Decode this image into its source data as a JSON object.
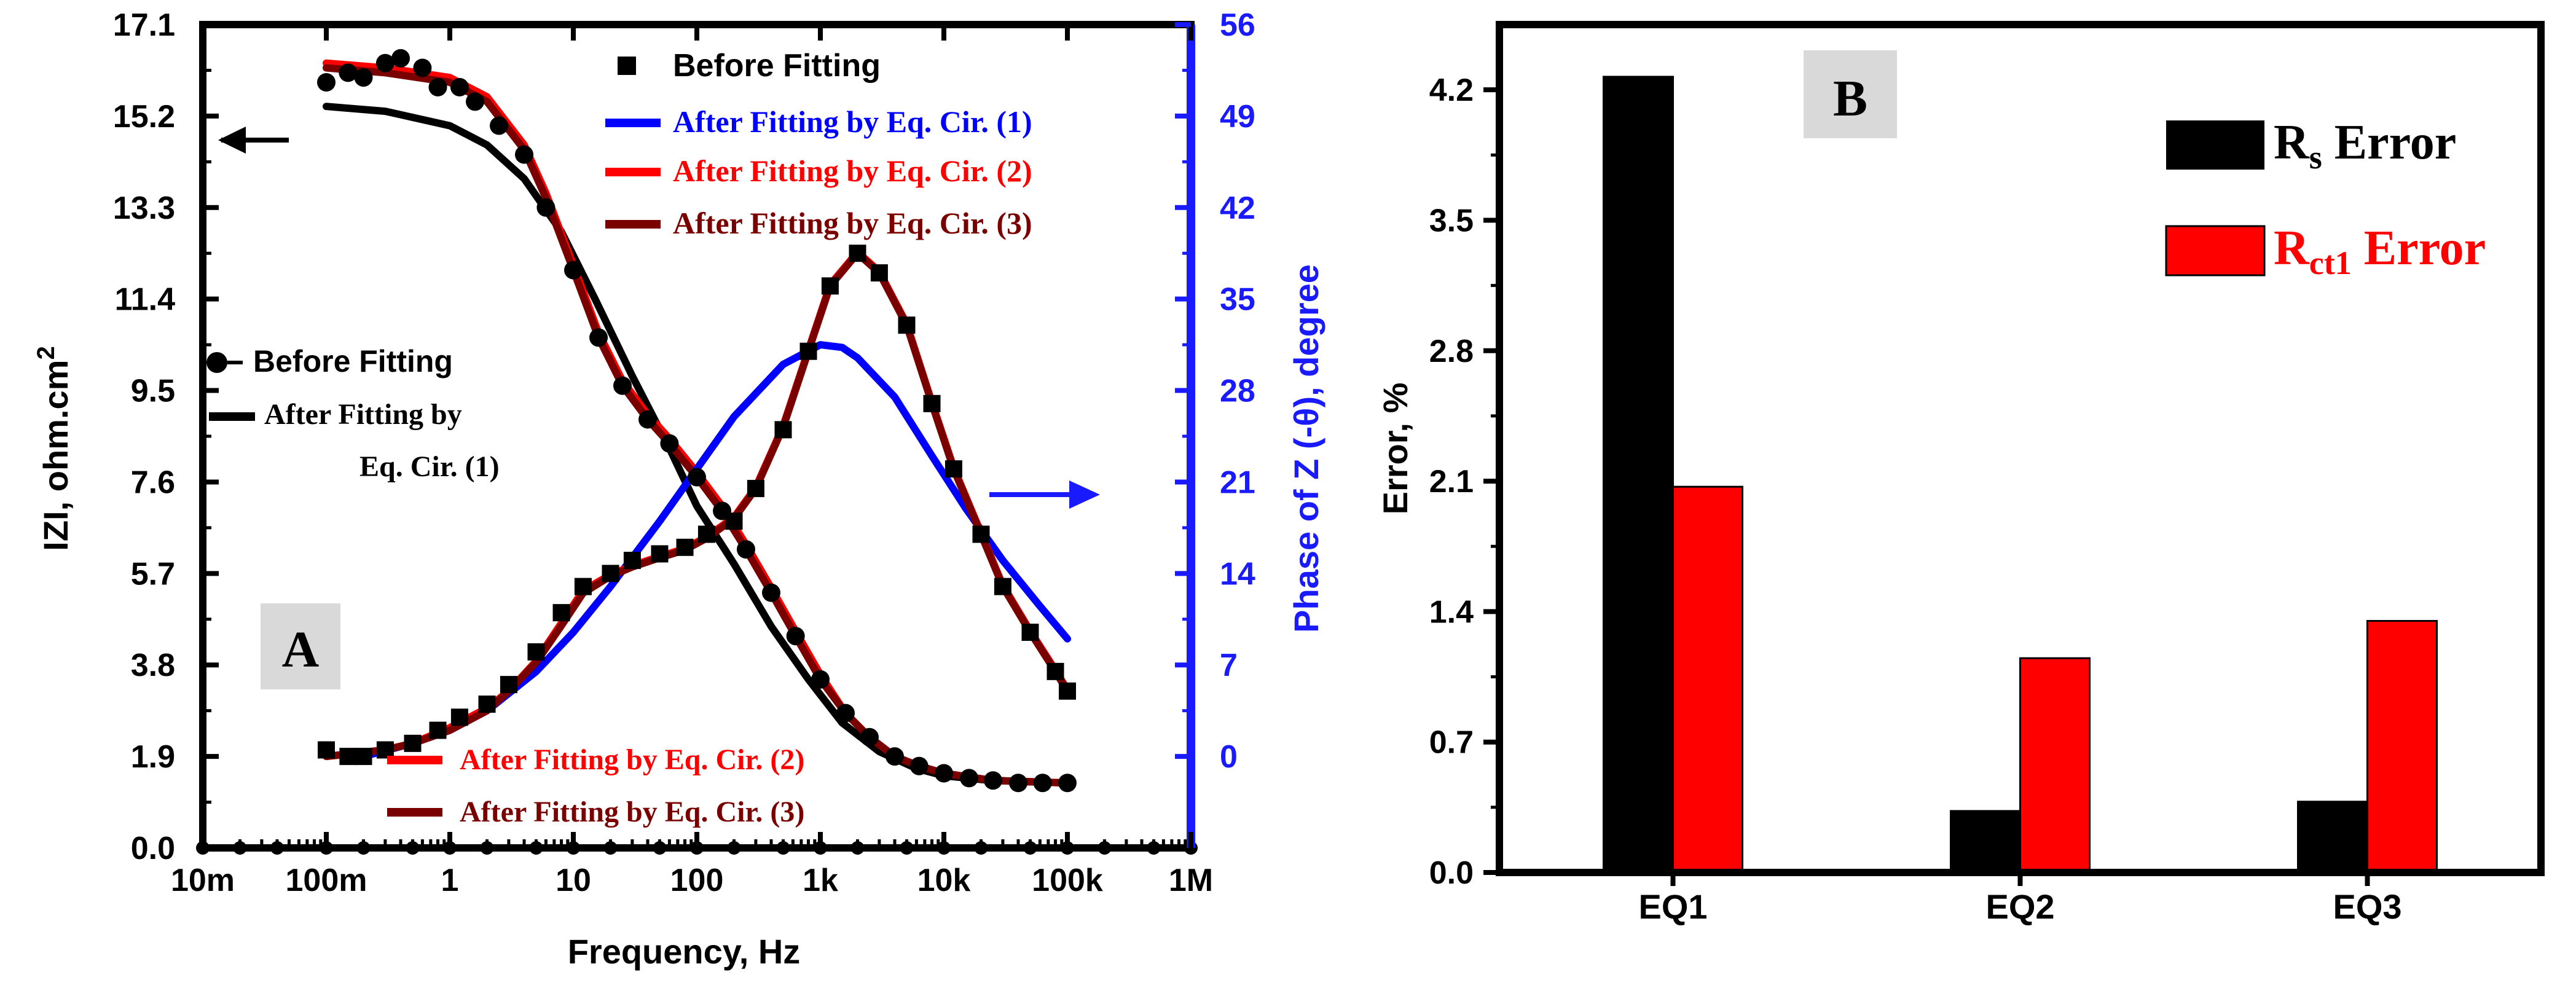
{
  "chart_data": [
    {
      "panel": "A",
      "type": "line",
      "title": "",
      "panel_label": "A",
      "xlabel": "Frequency, Hz",
      "xscale": "log",
      "xlim": [
        0.01,
        1000000
      ],
      "x_ticks": [
        0.01,
        0.1,
        1,
        10,
        100,
        1000,
        10000,
        100000,
        1000000
      ],
      "x_tick_labels": [
        "10m",
        "100m",
        "1",
        "10",
        "100",
        "1k",
        "10k",
        "100k",
        "1M"
      ],
      "ylabel_left": "IZI, ohm.cm",
      "ylabel_left_sup": "2",
      "ylim_left": [
        0,
        17.1
      ],
      "y_left_ticks": [
        0.0,
        1.9,
        3.8,
        5.7,
        7.6,
        9.5,
        11.4,
        13.3,
        15.2,
        17.1
      ],
      "y_left_tick_labels": [
        "0.0",
        "1.9",
        "3.8",
        "5.7",
        "7.6",
        "9.5",
        "11.4",
        "13.3",
        "15.2",
        "17.1"
      ],
      "ylabel_right": "Phase of Z (-θ), degree",
      "ylim_right": [
        -7,
        56
      ],
      "y_right_ticks": [
        0,
        7,
        14,
        21,
        28,
        35,
        42,
        49,
        56
      ],
      "y_right_tick_labels": [
        "0",
        "7",
        "14",
        "21",
        "28",
        "35",
        "42",
        "49",
        "56"
      ],
      "legend_top": [
        "Before Fitting",
        "After Fitting by Eq. Cir. (1)",
        "After Fitting by Eq. Cir. (2)",
        "After Fitting by Eq. Cir. (3)"
      ],
      "legend_left": [
        "Before Fitting",
        "After Fitting by",
        "Eq. Cir. (1)"
      ],
      "legend_bottom": [
        "After Fitting by Eq. Cir. (2)",
        "After Fitting by Eq. Cir. (3)"
      ],
      "marker_baseline_points": [
        0.01,
        0.02,
        0.04,
        0.1,
        0.2,
        0.5,
        1,
        2,
        5,
        10,
        20,
        50,
        100,
        200,
        500,
        1000,
        2000,
        5000,
        10000,
        20000,
        50000,
        100000,
        200000,
        500000,
        1000000
      ],
      "series": [
        {
          "name": "Before Fitting (|Z|)",
          "axis": "left",
          "style": "markers",
          "marker": "circle",
          "color": "#000000",
          "x": [
            0.1,
            0.15,
            0.2,
            0.3,
            0.4,
            0.6,
            0.8,
            1.2,
            1.6,
            2.5,
            4,
            6,
            10,
            16,
            25,
            40,
            60,
            100,
            160,
            250,
            400,
            630,
            1000,
            1600,
            2500,
            4000,
            6300,
            10000,
            16000,
            25000,
            40000,
            63000,
            100000
          ],
          "y": [
            15.9,
            16.1,
            16.0,
            16.3,
            16.4,
            16.2,
            15.8,
            15.8,
            15.5,
            15.0,
            14.4,
            13.3,
            12.0,
            10.6,
            9.6,
            8.9,
            8.4,
            7.7,
            7.0,
            6.2,
            5.3,
            4.4,
            3.5,
            2.8,
            2.3,
            1.9,
            1.7,
            1.55,
            1.45,
            1.4,
            1.35,
            1.35,
            1.35
          ]
        },
        {
          "name": "After Fitting by Eq. Cir. (1) (|Z|)",
          "axis": "left",
          "style": "line",
          "color": "#000000",
          "x": [
            0.1,
            0.3,
            1,
            2,
            4,
            8,
            15,
            30,
            60,
            100,
            200,
            400,
            800,
            1500,
            3000,
            6000,
            10000,
            20000,
            40000,
            100000
          ],
          "y": [
            15.4,
            15.3,
            15.0,
            14.6,
            13.9,
            12.8,
            11.4,
            9.8,
            8.3,
            7.1,
            5.9,
            4.6,
            3.5,
            2.6,
            2.0,
            1.65,
            1.5,
            1.42,
            1.38,
            1.35
          ]
        },
        {
          "name": "After Fitting by Eq. Cir. (2) (|Z|)",
          "axis": "left",
          "style": "line",
          "color": "#ff0000",
          "x": [
            0.1,
            0.3,
            1,
            2,
            4,
            6,
            10,
            16,
            25,
            40,
            60,
            100,
            160,
            250,
            400,
            630,
            1000,
            1600,
            2500,
            4000,
            6300,
            10000,
            25000,
            100000
          ],
          "y": [
            16.3,
            16.2,
            16.0,
            15.6,
            14.6,
            13.6,
            12.1,
            10.7,
            9.7,
            9.0,
            8.5,
            7.8,
            7.1,
            6.3,
            5.4,
            4.5,
            3.6,
            2.8,
            2.3,
            1.9,
            1.7,
            1.55,
            1.4,
            1.35
          ]
        },
        {
          "name": "After Fitting by Eq. Cir. (3) (|Z|)",
          "axis": "left",
          "style": "line",
          "color": "#7a0000",
          "x": [
            0.1,
            0.3,
            1,
            2,
            4,
            6,
            10,
            16,
            25,
            40,
            60,
            100,
            160,
            250,
            400,
            630,
            1000,
            1600,
            2500,
            4000,
            6300,
            10000,
            25000,
            100000
          ],
          "y": [
            16.2,
            16.1,
            15.9,
            15.5,
            14.5,
            13.5,
            12.0,
            10.6,
            9.6,
            8.9,
            8.4,
            7.7,
            7.0,
            6.2,
            5.3,
            4.4,
            3.5,
            2.8,
            2.3,
            1.9,
            1.7,
            1.55,
            1.4,
            1.35
          ]
        },
        {
          "name": "Before Fitting (Phase)",
          "axis": "right",
          "style": "markers",
          "marker": "square",
          "color": "#000000",
          "x": [
            0.1,
            0.15,
            0.2,
            0.3,
            0.5,
            0.8,
            1.2,
            2,
            3,
            5,
            8,
            12,
            20,
            30,
            50,
            80,
            120,
            200,
            300,
            500,
            800,
            1200,
            2000,
            3000,
            5000,
            8000,
            12000,
            20000,
            30000,
            50000,
            80000,
            100000
          ],
          "y": [
            0.5,
            0,
            0,
            0.5,
            1,
            2,
            3,
            4,
            5.5,
            8,
            11,
            13,
            14,
            15,
            15.5,
            16,
            17,
            18,
            20.5,
            25,
            31,
            36,
            38.5,
            37,
            33,
            27,
            22,
            17,
            13,
            9.5,
            6.5,
            5
          ]
        },
        {
          "name": "After Fitting by Eq. Cir. (1) (Phase)",
          "axis": "right",
          "style": "line",
          "color": "#0000ff",
          "x": [
            0.2,
            0.5,
            1,
            2,
            5,
            10,
            20,
            50,
            100,
            200,
            500,
            1000,
            1500,
            2000,
            4000,
            8000,
            15000,
            30000,
            60000,
            100000
          ],
          "y": [
            0,
            1,
            2,
            3.5,
            6.5,
            9.5,
            13,
            18,
            22,
            26,
            30,
            31.5,
            31.3,
            30.5,
            27.5,
            23,
            19,
            15,
            11.5,
            9
          ]
        },
        {
          "name": "After Fitting by Eq. Cir. (2) (Phase)",
          "axis": "right",
          "style": "line",
          "color": "#ff0000",
          "x": [
            0.1,
            0.3,
            0.5,
            1,
            2,
            3,
            5,
            8,
            12,
            20,
            30,
            50,
            80,
            120,
            200,
            300,
            500,
            800,
            1200,
            2000,
            3000,
            5000,
            8000,
            12000,
            20000,
            30000,
            50000,
            80000,
            100000
          ],
          "y": [
            0,
            0.5,
            1,
            2.2,
            3.7,
            5,
            7.3,
            10.2,
            12.7,
            13.9,
            14.6,
            15.3,
            15.9,
            16.8,
            18.3,
            20.6,
            25.3,
            31.1,
            36.1,
            38.6,
            37.1,
            33.1,
            27.1,
            22.1,
            17.1,
            13.1,
            9.6,
            6.6,
            5.1
          ]
        },
        {
          "name": "After Fitting by Eq. Cir. (3) (Phase)",
          "axis": "right",
          "style": "line",
          "color": "#7a0000",
          "x": [
            0.1,
            0.3,
            0.5,
            1,
            2,
            3,
            5,
            8,
            12,
            20,
            30,
            50,
            80,
            120,
            200,
            300,
            500,
            800,
            1200,
            2000,
            3000,
            5000,
            8000,
            12000,
            20000,
            30000,
            50000,
            80000,
            100000
          ],
          "y": [
            0,
            0.5,
            1,
            2,
            3.5,
            5,
            7.2,
            10,
            12.5,
            13.8,
            14.5,
            15.2,
            15.8,
            16.7,
            18.2,
            20.5,
            25.2,
            31,
            36,
            38.5,
            37,
            33,
            27,
            22,
            17,
            13,
            9.5,
            6.5,
            5
          ]
        }
      ]
    },
    {
      "panel": "B",
      "type": "bar",
      "title": "",
      "panel_label": "B",
      "xlabel": "",
      "ylabel": "Error, %",
      "ylim": [
        0,
        4.55
      ],
      "y_ticks": [
        0.0,
        0.7,
        1.4,
        2.1,
        2.8,
        3.5,
        4.2
      ],
      "y_tick_labels": [
        "0.0",
        "0.7",
        "1.4",
        "2.1",
        "2.8",
        "3.5",
        "4.2"
      ],
      "categories": [
        "EQ1",
        "EQ2",
        "EQ3"
      ],
      "series": [
        {
          "name": "Rs Error",
          "name_main": "R",
          "name_sub": "s",
          "name_tail": " Error",
          "color": "#000000",
          "values": [
            4.27,
            0.33,
            0.38
          ]
        },
        {
          "name": "Rct1 Error",
          "name_main": "R",
          "name_sub": "ct1",
          "name_tail": " Error",
          "color": "#ff0000",
          "values": [
            2.07,
            1.15,
            1.35
          ]
        }
      ]
    }
  ]
}
